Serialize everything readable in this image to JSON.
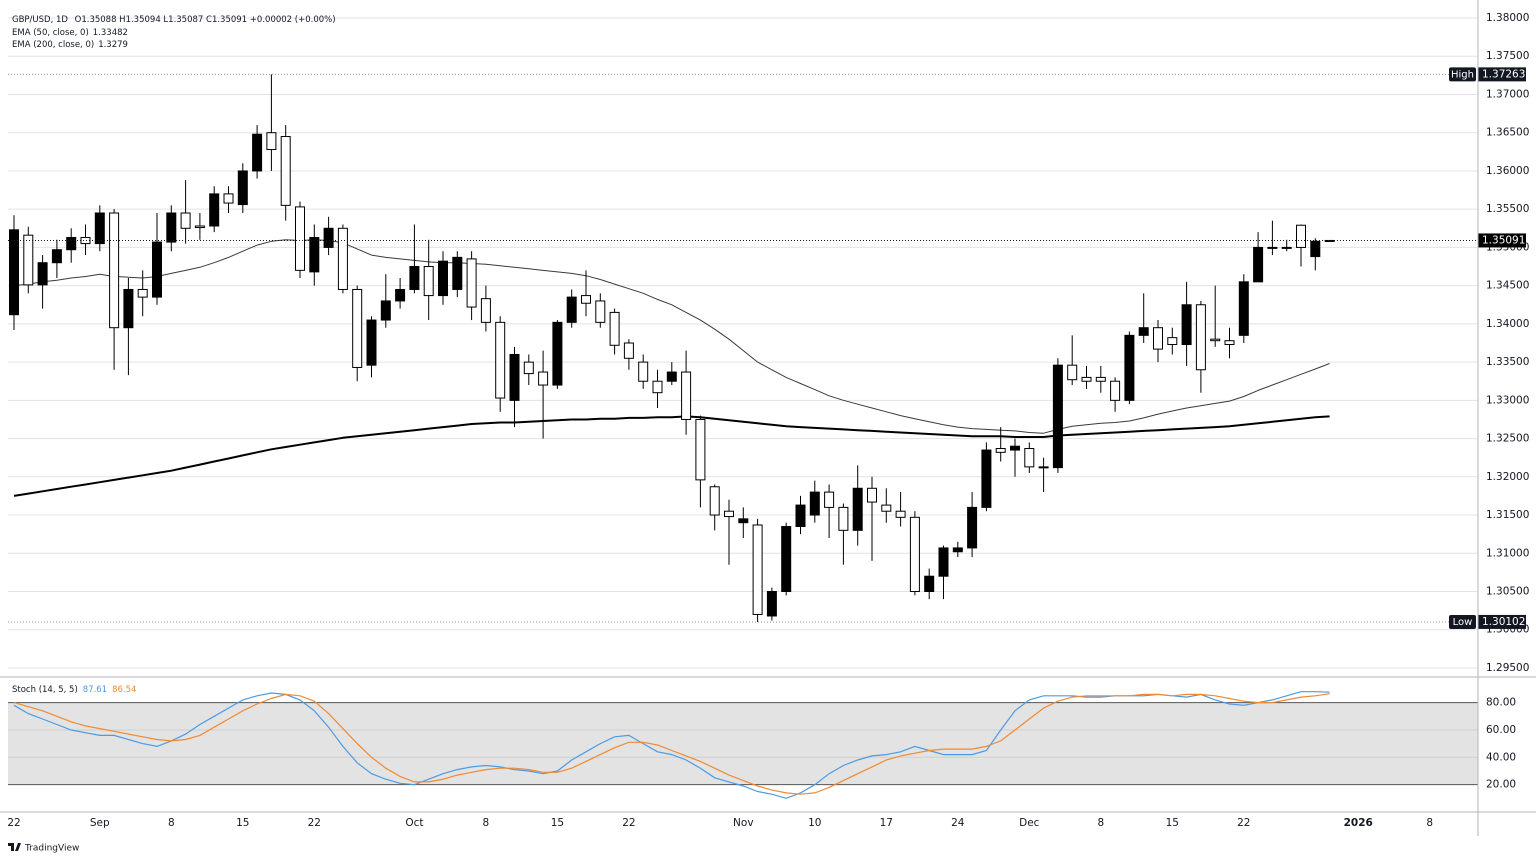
{
  "chart_data": [
    {
      "type": "candlestick",
      "symbol": "GBP/USD, 1D",
      "ohlc": "O1.35088 H1.35094 L1.35087 C1.35091 +0.00002 (+0.00%)",
      "categories": [
        "22",
        null,
        null,
        null,
        null,
        null,
        "Sep",
        null,
        null,
        null,
        null,
        "8",
        null,
        null,
        null,
        null,
        "15",
        null,
        null,
        null,
        null,
        "22",
        null,
        null,
        null,
        null,
        null,
        null,
        "Oct",
        null,
        null,
        null,
        null,
        "8",
        null,
        null,
        null,
        null,
        "15",
        null,
        null,
        null,
        null,
        "22",
        null,
        null,
        null,
        null,
        null,
        null,
        null,
        "Nov",
        null,
        null,
        null,
        null,
        "10",
        null,
        null,
        null,
        null,
        "17",
        null,
        null,
        null,
        null,
        "24",
        null,
        null,
        null,
        null,
        "Dec",
        null,
        null,
        null,
        null,
        "8",
        null,
        null,
        null,
        null,
        "15",
        null,
        null,
        null,
        null,
        "22",
        null,
        null,
        null,
        null,
        null,
        null,
        null,
        "2026",
        null,
        null,
        null,
        null,
        "8"
      ],
      "open": [
        1.3412,
        1.3516,
        1.3451,
        1.348,
        1.3497,
        1.3513,
        1.3505,
        1.3545,
        1.3395,
        1.3445,
        1.3435,
        1.3507,
        1.3545,
        1.3528,
        1.3528,
        1.357,
        1.3556,
        1.36,
        1.365,
        1.3645,
        1.3553,
        1.3468,
        1.35,
        1.3525,
        1.3445,
        1.3346,
        1.3405,
        1.343,
        1.3445,
        1.3475,
        1.3437,
        1.3445,
        1.3485,
        1.3433,
        1.3402,
        1.33,
        1.335,
        1.3337,
        1.332,
        1.3402,
        1.3437,
        1.343,
        1.3415,
        1.3375,
        1.335,
        1.3325,
        1.3325,
        1.3337,
        1.3275,
        1.3187,
        1.3155,
        1.314,
        1.3137,
        1.3018,
        1.305,
        1.3135,
        1.315,
        1.318,
        1.316,
        1.313,
        1.3185,
        1.3163,
        1.3155,
        1.3147,
        1.305,
        1.307,
        1.3102,
        1.3107,
        1.316,
        1.3237,
        1.3235,
        1.3237,
        1.3212,
        1.3212,
        1.3346,
        1.333,
        1.333,
        1.3325,
        1.33,
        1.3385,
        1.3395,
        1.3382,
        1.3373,
        1.3425,
        1.338,
        1.3378,
        1.3385,
        1.3455,
        1.35,
        1.3499,
        1.3529,
        1.3488,
        1.35088,
        null,
        null,
        null,
        null,
        null,
        null,
        null
      ],
      "high": [
        1.3542,
        1.3527,
        1.349,
        1.351,
        1.3525,
        1.353,
        1.3555,
        1.355,
        1.346,
        1.347,
        1.3545,
        1.3555,
        1.3588,
        1.3545,
        1.358,
        1.358,
        1.361,
        1.366,
        1.37263,
        1.366,
        1.356,
        1.353,
        1.354,
        1.353,
        1.345,
        1.341,
        1.3465,
        1.346,
        1.353,
        1.351,
        1.3495,
        1.3495,
        1.3495,
        1.345,
        1.341,
        1.337,
        1.336,
        1.3365,
        1.3405,
        1.3445,
        1.347,
        1.344,
        1.342,
        1.338,
        1.336,
        1.334,
        1.335,
        1.3365,
        1.328,
        1.319,
        1.317,
        1.316,
        1.3145,
        1.3055,
        1.314,
        1.3175,
        1.3195,
        1.319,
        1.3165,
        1.3215,
        1.32,
        1.3185,
        1.318,
        1.3155,
        1.308,
        1.311,
        1.3115,
        1.318,
        1.3245,
        1.3265,
        1.325,
        1.3245,
        1.3225,
        1.3355,
        1.3385,
        1.3345,
        1.3345,
        1.333,
        1.339,
        1.344,
        1.3405,
        1.3395,
        1.3455,
        1.343,
        1.345,
        1.3395,
        1.3465,
        1.352,
        1.3535,
        1.351,
        1.353,
        1.3512,
        1.35094,
        null,
        null,
        null,
        null,
        null,
        null,
        null
      ],
      "low": [
        1.3392,
        1.344,
        1.342,
        1.346,
        1.348,
        1.349,
        1.3495,
        1.334,
        1.3333,
        1.341,
        1.3425,
        1.3495,
        1.3505,
        1.351,
        1.352,
        1.3545,
        1.3545,
        1.359,
        1.36,
        1.3535,
        1.346,
        1.345,
        1.349,
        1.344,
        1.3325,
        1.333,
        1.3395,
        1.342,
        1.344,
        1.3405,
        1.3425,
        1.3435,
        1.3405,
        1.339,
        1.3285,
        1.3265,
        1.332,
        1.325,
        1.3315,
        1.3395,
        1.341,
        1.3395,
        1.336,
        1.334,
        1.3315,
        1.329,
        1.332,
        1.3255,
        1.316,
        1.313,
        1.3085,
        1.312,
        1.30102,
        1.3012,
        1.3045,
        1.3125,
        1.314,
        1.312,
        1.3085,
        1.311,
        1.309,
        1.314,
        1.3135,
        1.3045,
        1.304,
        1.304,
        1.3095,
        1.3095,
        1.3155,
        1.322,
        1.32,
        1.3205,
        1.318,
        1.3205,
        1.332,
        1.3315,
        1.331,
        1.3285,
        1.3295,
        1.3375,
        1.335,
        1.336,
        1.3345,
        1.331,
        1.337,
        1.3355,
        1.3375,
        1.3455,
        1.349,
        1.3495,
        1.3475,
        1.347,
        1.35087,
        null,
        null,
        null,
        null,
        null,
        null,
        null
      ],
      "close": [
        1.3523,
        1.3451,
        1.348,
        1.3497,
        1.3513,
        1.3505,
        1.3545,
        1.3395,
        1.3445,
        1.3435,
        1.3507,
        1.3545,
        1.3525,
        1.3526,
        1.357,
        1.3558,
        1.36,
        1.3648,
        1.3628,
        1.3555,
        1.347,
        1.3513,
        1.3525,
        1.3445,
        1.3343,
        1.3405,
        1.343,
        1.3445,
        1.3475,
        1.3437,
        1.3482,
        1.3487,
        1.3422,
        1.3402,
        1.3303,
        1.336,
        1.3335,
        1.332,
        1.3402,
        1.3435,
        1.3427,
        1.3402,
        1.3372,
        1.3355,
        1.3325,
        1.331,
        1.3337,
        1.3275,
        1.3196,
        1.315,
        1.3148,
        1.3145,
        1.302,
        1.305,
        1.3135,
        1.3163,
        1.318,
        1.316,
        1.313,
        1.3185,
        1.3167,
        1.3155,
        1.3147,
        1.305,
        1.307,
        1.3107,
        1.3107,
        1.316,
        1.3235,
        1.3232,
        1.324,
        1.3213,
        1.3213,
        1.3346,
        1.3327,
        1.3325,
        1.3325,
        1.33,
        1.3385,
        1.3395,
        1.3367,
        1.3373,
        1.3425,
        1.334,
        1.3378,
        1.3373,
        1.3455,
        1.35,
        1.3499,
        1.35,
        1.35,
        1.3508,
        1.35091,
        null,
        null,
        null,
        null,
        null,
        null,
        null
      ],
      "up_color": "#000000",
      "down_color": "#ffffff",
      "series": [
        {
          "name": "EMA (50, close, 0)",
          "color": "#3a3a3a",
          "width": 1,
          "values": [
            1.345,
            1.3452,
            1.3455,
            1.3457,
            1.346,
            1.3462,
            1.3465,
            1.3462,
            1.3461,
            1.346,
            1.3462,
            1.3466,
            1.347,
            1.3474,
            1.348,
            1.3487,
            1.3495,
            1.3503,
            1.3508,
            1.351,
            1.3509,
            1.351,
            1.3509,
            1.3506,
            1.3498,
            1.349,
            1.3487,
            1.3485,
            1.3483,
            1.3481,
            1.348,
            1.348,
            1.3479,
            1.3478,
            1.3476,
            1.3474,
            1.3472,
            1.347,
            1.3468,
            1.3466,
            1.3463,
            1.3458,
            1.3452,
            1.3446,
            1.344,
            1.3432,
            1.3425,
            1.3415,
            1.3405,
            1.3393,
            1.338,
            1.3365,
            1.335,
            1.334,
            1.333,
            1.3322,
            1.3314,
            1.3306,
            1.33,
            1.3295,
            1.329,
            1.3285,
            1.328,
            1.3276,
            1.3272,
            1.3268,
            1.3265,
            1.3263,
            1.3262,
            1.3261,
            1.326,
            1.3258,
            1.3257,
            1.3262,
            1.3266,
            1.3268,
            1.327,
            1.3271,
            1.3273,
            1.3277,
            1.3282,
            1.3286,
            1.329,
            1.3293,
            1.3296,
            1.3299,
            1.3305,
            1.3313,
            1.332,
            1.3327,
            1.3334,
            1.3341,
            1.33482,
            null,
            null,
            null,
            null,
            null,
            null,
            null
          ]
        },
        {
          "name": "EMA (200, close, 0)",
          "color": "#000000",
          "width": 2,
          "values": [
            1.3175,
            1.3178,
            1.3181,
            1.3184,
            1.3187,
            1.319,
            1.3193,
            1.3196,
            1.3199,
            1.3202,
            1.3205,
            1.3208,
            1.3212,
            1.3216,
            1.322,
            1.3224,
            1.3228,
            1.3232,
            1.3236,
            1.3239,
            1.3242,
            1.3245,
            1.3248,
            1.3251,
            1.3253,
            1.3255,
            1.3257,
            1.3259,
            1.3261,
            1.3263,
            1.3265,
            1.3267,
            1.3269,
            1.327,
            1.3271,
            1.3271,
            1.3272,
            1.3273,
            1.3274,
            1.3275,
            1.3275,
            1.3276,
            1.3276,
            1.3277,
            1.3277,
            1.3278,
            1.3278,
            1.3279,
            1.3278,
            1.3276,
            1.3274,
            1.3272,
            1.327,
            1.3268,
            1.3266,
            1.3265,
            1.3264,
            1.3263,
            1.3262,
            1.3261,
            1.326,
            1.3259,
            1.3258,
            1.3257,
            1.3256,
            1.3255,
            1.3254,
            1.3253,
            1.3253,
            1.3253,
            1.3252,
            1.3252,
            1.3252,
            1.3254,
            1.3255,
            1.3256,
            1.3257,
            1.3258,
            1.3259,
            1.326,
            1.3261,
            1.3262,
            1.3263,
            1.3264,
            1.3265,
            1.3266,
            1.3268,
            1.327,
            1.3272,
            1.3274,
            1.3276,
            1.3278,
            1.3279,
            null,
            null,
            null,
            null,
            null,
            null,
            null
          ]
        }
      ],
      "high_marker": {
        "label": "High",
        "value": 1.37263
      },
      "low_marker": {
        "label": "Low",
        "value": 1.30102
      },
      "last_price": 1.35091,
      "ylim": [
        1.29395,
        1.38131
      ],
      "yticks": [
        {
          "value": 1.295,
          "label": "1.29500"
        },
        {
          "value": 1.3,
          "label": "1.30000"
        },
        {
          "value": 1.305,
          "label": "1.30500"
        },
        {
          "value": 1.31,
          "label": "1.31000"
        },
        {
          "value": 1.315,
          "label": "1.31500"
        },
        {
          "value": 1.32,
          "label": "1.32000"
        },
        {
          "value": 1.325,
          "label": "1.32500"
        },
        {
          "value": 1.33,
          "label": "1.33000"
        },
        {
          "value": 1.335,
          "label": "1.33500"
        },
        {
          "value": 1.34,
          "label": "1.34000"
        },
        {
          "value": 1.345,
          "label": "1.34500"
        },
        {
          "value": 1.35,
          "label": "1.35000"
        },
        {
          "value": 1.355,
          "label": "1.35500"
        },
        {
          "value": 1.36,
          "label": "1.36000"
        },
        {
          "value": 1.365,
          "label": "1.36500"
        },
        {
          "value": 1.37,
          "label": "1.37000"
        },
        {
          "value": 1.375,
          "label": "1.37500"
        },
        {
          "value": 1.38,
          "label": "1.38000"
        }
      ],
      "grid": true
    },
    {
      "type": "line",
      "title": "Stoch (14, 5, 5)",
      "series": [
        {
          "color": "#4a9be6",
          "values": [
            78,
            72,
            68,
            64,
            60,
            58,
            56,
            56,
            53,
            50,
            48,
            52,
            57,
            64,
            70,
            76,
            82,
            85,
            87,
            86,
            82,
            74,
            62,
            48,
            36,
            28,
            24,
            21,
            20,
            24,
            28,
            31,
            33,
            34,
            33,
            31,
            30,
            28,
            30,
            38,
            44,
            50,
            55,
            56,
            50,
            44,
            42,
            38,
            32,
            25,
            22,
            19,
            15,
            13,
            10,
            14,
            20,
            28,
            34,
            38,
            41,
            42,
            44,
            48,
            45,
            42,
            42,
            42,
            45,
            60,
            74,
            82,
            85,
            85,
            85,
            84,
            84,
            85,
            85,
            85,
            86,
            85,
            84,
            86,
            82,
            79,
            78,
            80,
            82,
            85,
            88,
            88,
            87.61,
            null,
            null,
            null,
            null,
            null,
            null,
            null
          ]
        },
        {
          "color": "#f08a32",
          "values": [
            80,
            77,
            74,
            70,
            66,
            63,
            61,
            59,
            57,
            55,
            53,
            52,
            53,
            56,
            62,
            68,
            74,
            79,
            83,
            86,
            85,
            81,
            72,
            61,
            50,
            40,
            32,
            26,
            22,
            22,
            24,
            27,
            29,
            31,
            32,
            32,
            31,
            29,
            29,
            32,
            37,
            42,
            47,
            51,
            51,
            49,
            45,
            41,
            37,
            32,
            27,
            23,
            19,
            16,
            14,
            13,
            14,
            18,
            23,
            28,
            33,
            38,
            41,
            43,
            45,
            46,
            46,
            46,
            48,
            52,
            60,
            68,
            76,
            81,
            84,
            85,
            85,
            85,
            85,
            86,
            86,
            85,
            86,
            86,
            85,
            83,
            81,
            80,
            80,
            82,
            84,
            85,
            86.54,
            null,
            null,
            null,
            null,
            null,
            null,
            null
          ]
        }
      ],
      "band": [
        20,
        80
      ],
      "ylim": [
        0,
        98
      ],
      "yticks": [
        {
          "value": 20,
          "label": "20.00"
        },
        {
          "value": 40,
          "label": "40.00"
        },
        {
          "value": 60,
          "label": "60.00"
        },
        {
          "value": 80,
          "label": "80.00"
        }
      ]
    }
  ],
  "footer": "TradingView"
}
